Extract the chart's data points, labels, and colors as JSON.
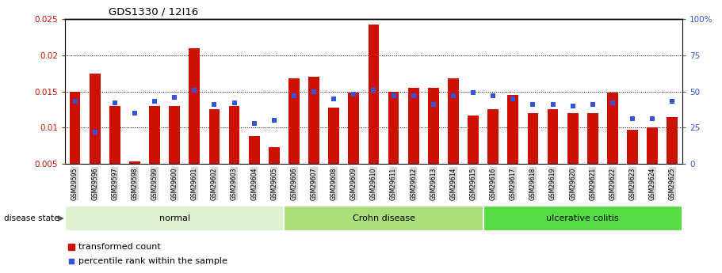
{
  "title": "GDS1330 / 12I16",
  "categories": [
    "GSM29595",
    "GSM29596",
    "GSM29597",
    "GSM29598",
    "GSM29599",
    "GSM29600",
    "GSM29601",
    "GSM29602",
    "GSM29603",
    "GSM29604",
    "GSM29605",
    "GSM29606",
    "GSM29607",
    "GSM29608",
    "GSM29609",
    "GSM29610",
    "GSM29611",
    "GSM29612",
    "GSM29613",
    "GSM29614",
    "GSM29615",
    "GSM29616",
    "GSM29617",
    "GSM29618",
    "GSM29619",
    "GSM29620",
    "GSM29621",
    "GSM29622",
    "GSM29623",
    "GSM29624",
    "GSM29625"
  ],
  "red_values": [
    0.015,
    0.0175,
    0.013,
    0.0053,
    0.013,
    0.013,
    0.021,
    0.0125,
    0.013,
    0.0088,
    0.0073,
    0.0168,
    0.017,
    0.0128,
    0.0148,
    0.0242,
    0.015,
    0.0155,
    0.0155,
    0.0168,
    0.0117,
    0.0125,
    0.0145,
    0.012,
    0.0125,
    0.012,
    0.012,
    0.0148,
    0.0097,
    0.01,
    0.0115
  ],
  "blue_percentiles": [
    43,
    22,
    42,
    35,
    43,
    46,
    51,
    41,
    42,
    28,
    30,
    47,
    50,
    45,
    48,
    51,
    47,
    47,
    41,
    47,
    49,
    47,
    45,
    41,
    41,
    40,
    41,
    42,
    31,
    31,
    43
  ],
  "groups": [
    {
      "label": "normal",
      "start": 0,
      "end": 11,
      "color": "#dff0d0"
    },
    {
      "label": "Crohn disease",
      "start": 11,
      "end": 21,
      "color": "#aadf7a"
    },
    {
      "label": "ulcerative colitis",
      "start": 21,
      "end": 31,
      "color": "#55dd44"
    }
  ],
  "ylim_left": [
    0.005,
    0.025
  ],
  "ylim_right": [
    0,
    100
  ],
  "yticks_left": [
    0.005,
    0.01,
    0.015,
    0.02,
    0.025
  ],
  "ytick_labels_left": [
    "0.005",
    "0.01",
    "0.015",
    "0.02",
    "0.025"
  ],
  "yticks_right": [
    0,
    25,
    50,
    75,
    100
  ],
  "ytick_labels_right": [
    "0",
    "25",
    "50",
    "75",
    "100%"
  ],
  "red_color": "#cc1100",
  "blue_color": "#3355dd",
  "disease_state_label": "disease state",
  "legend_red": "transformed count",
  "legend_blue": "percentile rank within the sample"
}
